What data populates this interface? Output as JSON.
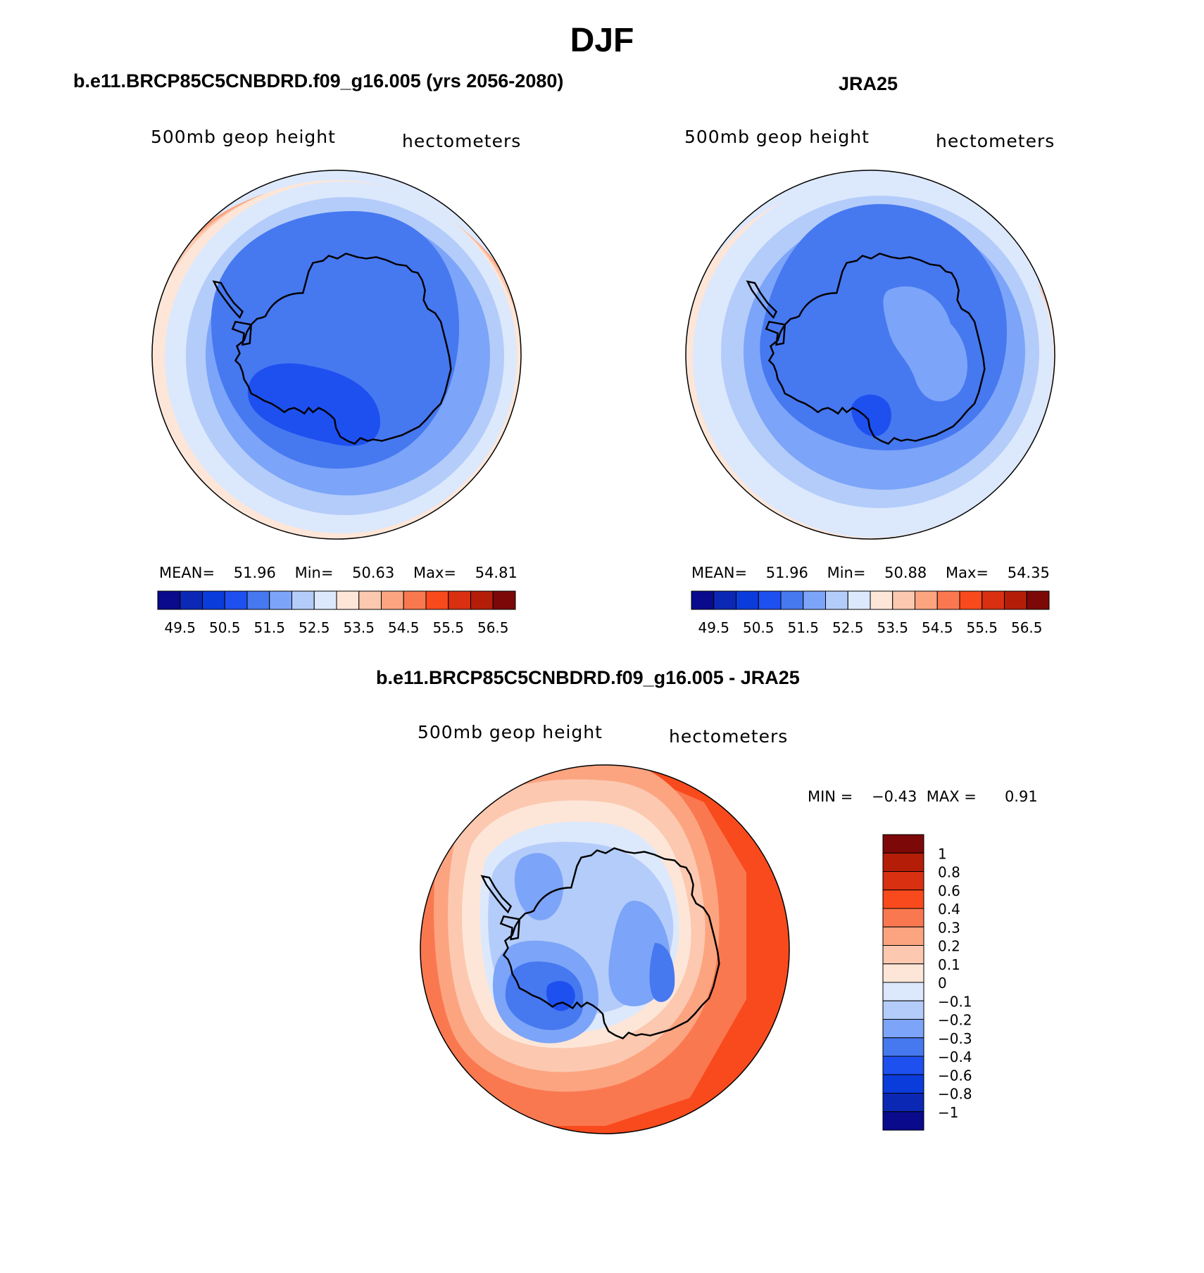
{
  "main_title": "DJF",
  "panels": [
    {
      "title": "b.e11.BRCP85C5CNBDRD.f09_g16.005 (yrs 2056-2080)",
      "var_label": "500mb geop height",
      "units": "hectometers",
      "stats": {
        "mean_label": "MEAN=",
        "mean": "51.96",
        "min_label": "Min=",
        "min": "50.63",
        "max_label": "Max=",
        "max": "54.81"
      },
      "colorbar": {
        "colors": [
          "#0a0a8c",
          "#0a28b4",
          "#0a3cdc",
          "#1e50f0",
          "#4678f0",
          "#7ca4f8",
          "#b4ccfa",
          "#dce8fc",
          "#fde6d8",
          "#fcc8b0",
          "#fca480",
          "#fa7850",
          "#f84a1c",
          "#d83010",
          "#b41e08",
          "#7c0808"
        ],
        "tick_labels": [
          "49.5",
          "50.5",
          "51.5",
          "52.5",
          "53.5",
          "54.5",
          "55.5",
          "56.5"
        ]
      }
    },
    {
      "title": "JRA25",
      "var_label": "500mb geop height",
      "units": "hectometers",
      "stats": {
        "mean_label": "MEAN=",
        "mean": "51.96",
        "min_label": "Min=",
        "min": "50.88",
        "max_label": "Max=",
        "max": "54.35"
      },
      "colorbar": {
        "colors": [
          "#0a0a8c",
          "#0a28b4",
          "#0a3cdc",
          "#1e50f0",
          "#4678f0",
          "#7ca4f8",
          "#b4ccfa",
          "#dce8fc",
          "#fde6d8",
          "#fcc8b0",
          "#fca480",
          "#fa7850",
          "#f84a1c",
          "#d83010",
          "#b41e08",
          "#7c0808"
        ],
        "tick_labels": [
          "49.5",
          "50.5",
          "51.5",
          "52.5",
          "53.5",
          "54.5",
          "55.5",
          "56.5"
        ]
      }
    },
    {
      "title": "b.e11.BRCP85C5CNBDRD.f09_g16.005 - JRA25",
      "var_label": "500mb geop height",
      "units": "hectometers",
      "stats": {
        "min_label": "MIN =",
        "min": "−0.43",
        "max_label": "MAX =",
        "max": "0.91"
      },
      "colorbar": {
        "colors": [
          "#7c0808",
          "#b41e08",
          "#d83010",
          "#f84a1c",
          "#fa7850",
          "#fca480",
          "#fcc8b0",
          "#fde6d8",
          "#dce8fc",
          "#b4ccfa",
          "#7ca4f8",
          "#4678f0",
          "#1e50f0",
          "#0a3cdc",
          "#0a28b4",
          "#0a0a8c"
        ],
        "tick_labels": [
          "1",
          "0.8",
          "0.6",
          "0.4",
          "0.3",
          "0.2",
          "0.1",
          "0",
          "−0.1",
          "−0.2",
          "−0.3",
          "−0.4",
          "−0.6",
          "−0.8",
          "−1"
        ]
      }
    }
  ],
  "palette": {
    "coast": "#000000"
  }
}
